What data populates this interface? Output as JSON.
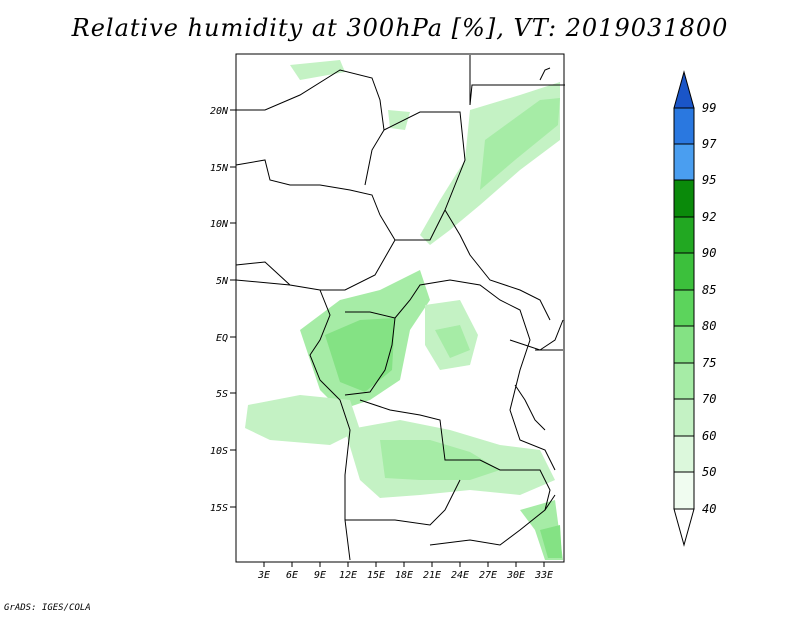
{
  "title": "Relative humidity at 300hPa [%], VT: 2019031800",
  "footer": "GrADS: IGES/COLA",
  "map": {
    "lat_labels": [
      "20N",
      "15N",
      "10N",
      "5N",
      "EQ",
      "5S",
      "10S",
      "15S"
    ],
    "lon_labels": [
      "3E",
      "6E",
      "9E",
      "12E",
      "15E",
      "18E",
      "21E",
      "24E",
      "27E",
      "30E",
      "33E"
    ]
  },
  "colorbar": {
    "levels": [
      "99",
      "97",
      "95",
      "92",
      "90",
      "85",
      "80",
      "75",
      "70",
      "60",
      "50",
      "40"
    ],
    "colors": [
      "#1a55c8",
      "#2a78e0",
      "#4a9ef0",
      "#0a8a0a",
      "#22a822",
      "#3cc03c",
      "#5cd45c",
      "#84e284",
      "#a6eca6",
      "#c4f2c4",
      "#dcf8dc",
      "#f0fcf0",
      "#ffffff"
    ]
  }
}
